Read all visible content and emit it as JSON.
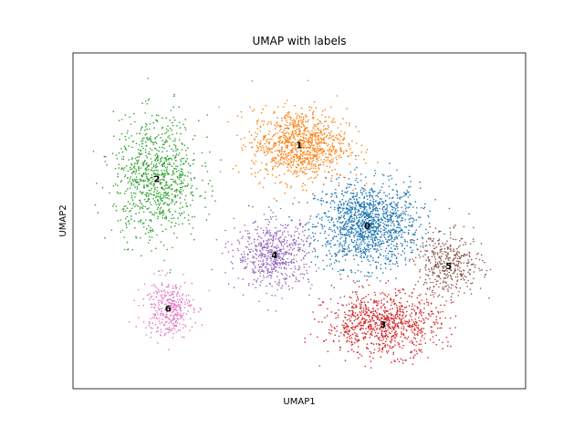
{
  "chart_data": {
    "type": "scatter",
    "title": "UMAP with labels",
    "xlabel": "UMAP1",
    "ylabel": "UMAP2",
    "xticks": "none",
    "yticks": "none",
    "grid": false,
    "legend": "on data",
    "xlim": [
      0,
      10
    ],
    "ylim": [
      0,
      7.5
    ],
    "series": [
      {
        "name": "0",
        "label": "0",
        "color": "#1f77b4",
        "center": [
          6.5,
          3.65
        ],
        "spread": [
          1.15,
          0.95
        ],
        "n": 1400
      },
      {
        "name": "1",
        "label": "1",
        "color": "#ff7f0e",
        "center": [
          5.0,
          5.45
        ],
        "spread": [
          1.05,
          0.8
        ],
        "n": 1000
      },
      {
        "name": "2",
        "label": "2",
        "color": "#2ca02c",
        "center": [
          1.85,
          4.7
        ],
        "spread": [
          0.95,
          1.35
        ],
        "n": 900
      },
      {
        "name": "3",
        "label": "3",
        "color": "#d62728",
        "center": [
          6.85,
          1.45
        ],
        "spread": [
          1.25,
          0.7
        ],
        "n": 900
      },
      {
        "name": "4",
        "label": "4",
        "color": "#9467bd",
        "center": [
          4.45,
          3.0
        ],
        "spread": [
          0.85,
          0.75
        ],
        "n": 600
      },
      {
        "name": "5",
        "label": "5",
        "color": "#8c564b",
        "center": [
          8.3,
          2.75
        ],
        "spread": [
          0.75,
          0.7
        ],
        "n": 400
      },
      {
        "name": "6",
        "label": "6",
        "color": "#e377c2",
        "center": [
          2.1,
          1.8
        ],
        "spread": [
          0.55,
          0.65
        ],
        "n": 350
      }
    ]
  }
}
